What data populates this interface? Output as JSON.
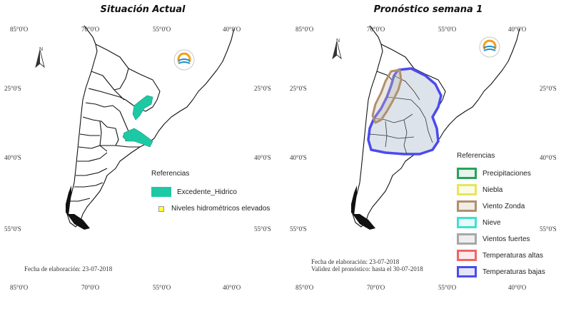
{
  "left": {
    "title": "Situación Actual",
    "ticks": {
      "top": [
        "85°0'O",
        "70°0'O",
        "55°0'O",
        "40°0'O"
      ],
      "bottom": [
        "85°0'O",
        "70°0'O",
        "55°0'O",
        "40°0'O"
      ],
      "left": [
        "25°0'S",
        "40°0'S",
        "55°0'S"
      ],
      "right": [
        "25°0'S",
        "40°0'S",
        "55°0'S"
      ]
    },
    "north_label": "N",
    "legend": {
      "title": "Referencias",
      "items": [
        {
          "label": "Excedente_Hidrico",
          "color": "#1dc9a4"
        },
        {
          "label": "Niveles hidrométricos elevados",
          "color": "#ffff33"
        }
      ]
    },
    "footer": [
      "Fecha de elaboración: 23-07-2018"
    ]
  },
  "right": {
    "title": "Pronóstico semana 1",
    "ticks": {
      "top": [
        "85°0'O",
        "70°0'O",
        "55°0'O",
        "40°0'O"
      ],
      "bottom": [
        "85°0'O",
        "70°0'O",
        "55°0'O",
        "40°0'O"
      ],
      "left": [
        "25°0'S",
        "40°0'S",
        "55°0'S"
      ],
      "right": [
        "25°0'S",
        "40°0'S",
        "55°0'S"
      ]
    },
    "north_label": "N",
    "legend": {
      "title": "Referencias",
      "items": [
        {
          "label": "Precipitaciones",
          "color": "#27a35a"
        },
        {
          "label": "Niebla",
          "color": "#e6e65c"
        },
        {
          "label": "Viento Zonda",
          "color": "#b09070"
        },
        {
          "label": "Nieve",
          "color": "#40e0d0"
        },
        {
          "label": "Vientos fuertes",
          "color": "#a8a8a8"
        },
        {
          "label": "Temperaturas altas",
          "color": "#ee6666"
        },
        {
          "label": "Temperaturas bajas",
          "color": "#4b4bf0"
        }
      ]
    },
    "footer": [
      "Fecha de elaboración: 23-07-2018",
      "Validez del pronóstico: hasta el 30-07-2018"
    ]
  }
}
